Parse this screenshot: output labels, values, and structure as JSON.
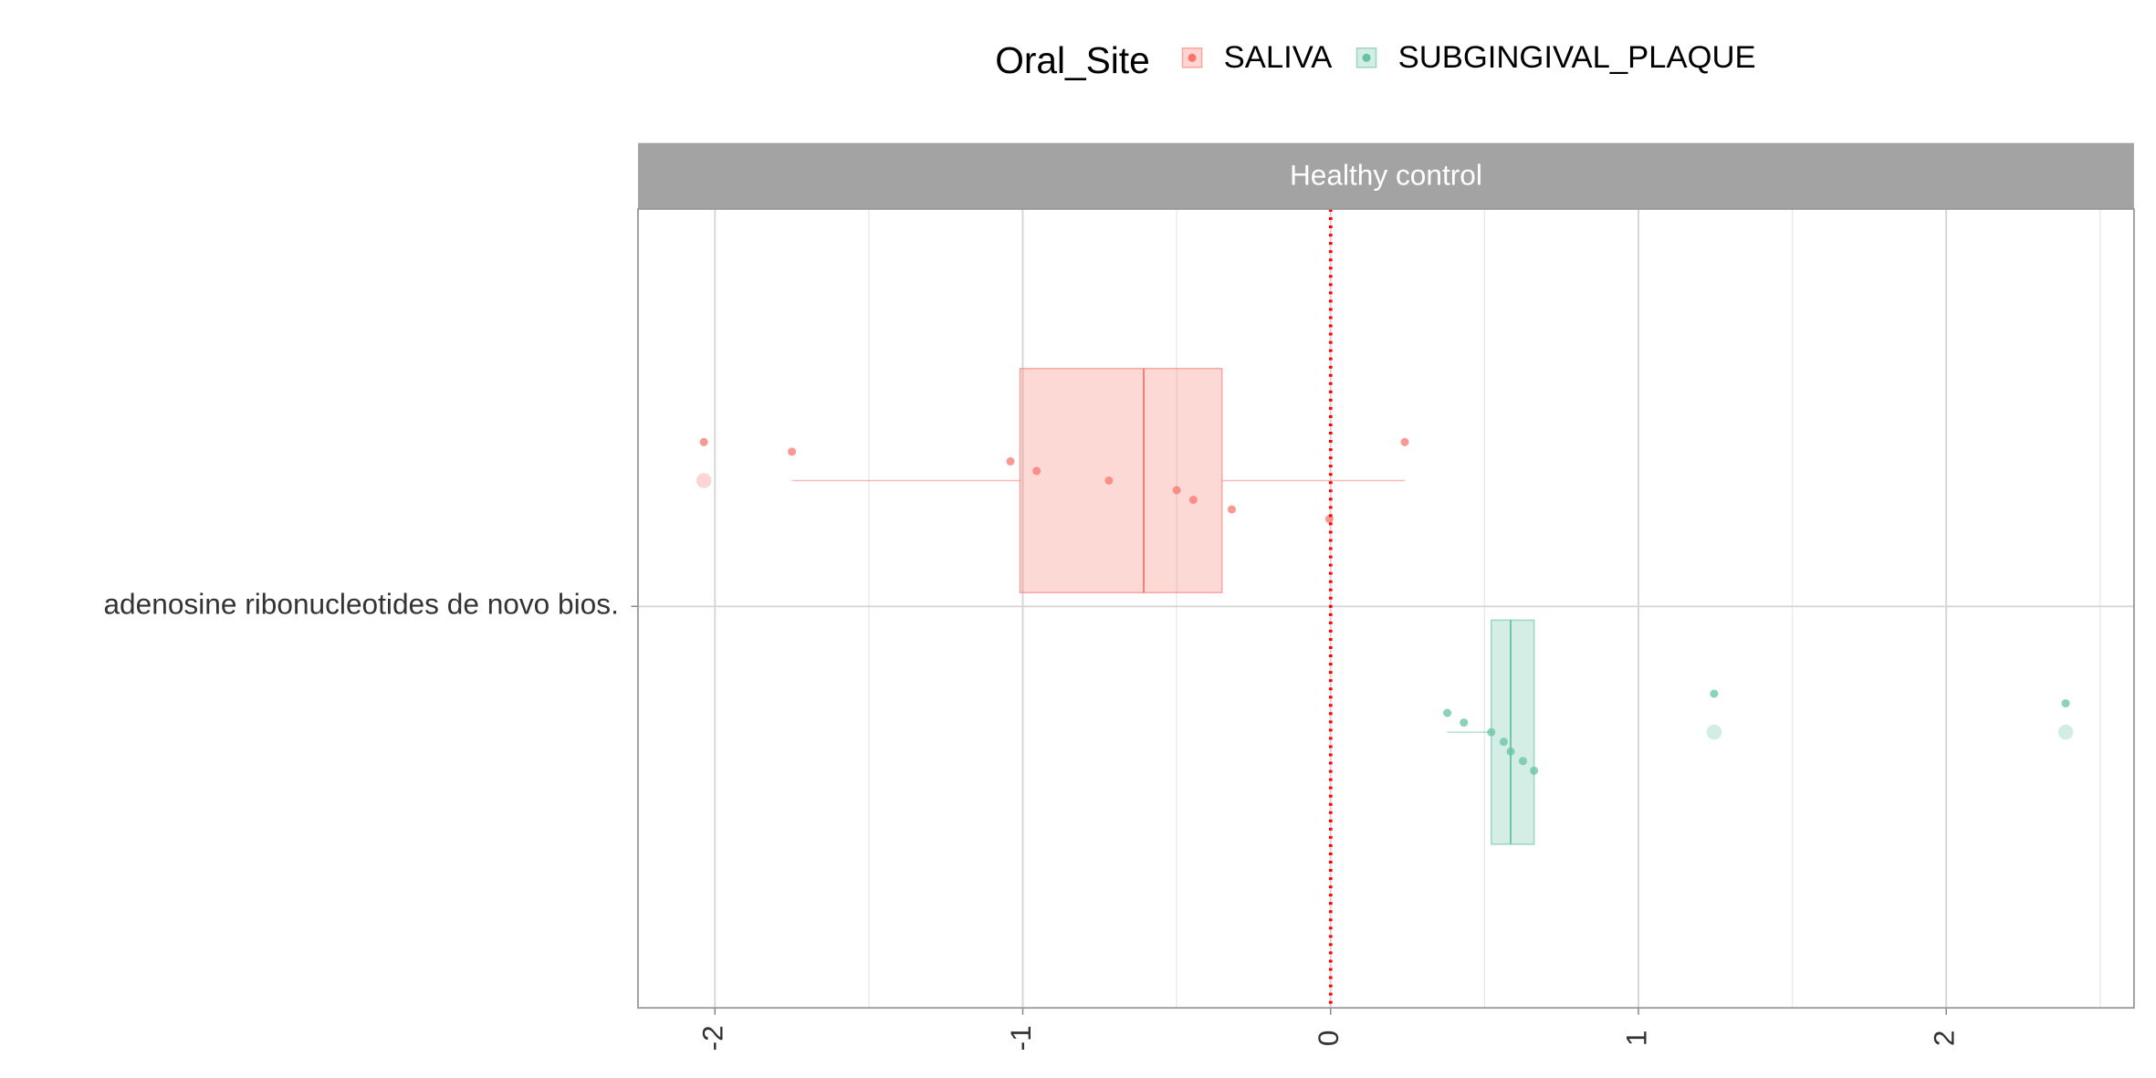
{
  "chart_data": {
    "type": "boxplot",
    "legend_title": "Oral_Site",
    "facet_title": "Healthy control",
    "categories": [
      "adenosine ribonucleotides de novo bios."
    ],
    "xlim": [
      -2.25,
      2.61
    ],
    "xticks": [
      -2,
      -1,
      0,
      1,
      2
    ],
    "minor_xticks": [
      -1.5,
      -0.5,
      0.5,
      1.5,
      2.5
    ],
    "vline": 0,
    "grid": true,
    "legend_position": "top",
    "series": [
      {
        "name": "SALIVA",
        "color": "#F8766D",
        "whisker_low": -1.75,
        "q1": -1.009,
        "median": -0.607,
        "q3": -0.353,
        "whisker_high": 0.241,
        "outliers": [
          -2.036
        ],
        "points": [
          -2.036,
          -1.75,
          -1.04,
          -0.955,
          -0.72,
          -0.5,
          -0.446,
          -0.321,
          -0.004,
          0.241
        ]
      },
      {
        "name": "SUBGINGIVAL_PLAQUE",
        "color": "#66C2A5",
        "whisker_low": 0.379,
        "q1": 0.522,
        "median": 0.585,
        "q3": 0.661,
        "whisker_high": 0.661,
        "outliers": [
          1.246,
          2.388
        ],
        "points": [
          0.379,
          0.433,
          0.522,
          0.5625,
          0.585,
          0.625,
          0.661,
          1.246,
          2.388
        ]
      }
    ]
  }
}
